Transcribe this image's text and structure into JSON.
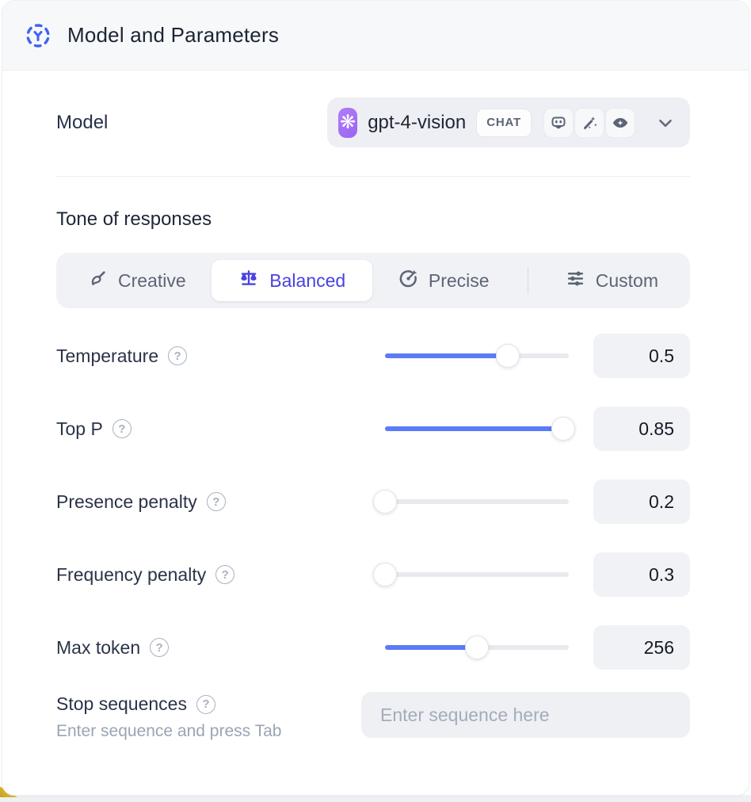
{
  "header": {
    "title": "Model and Parameters"
  },
  "model": {
    "label": "Model",
    "selected_model": "gpt-4-vision",
    "type_badge": "CHAT",
    "provider_glyph": "❋",
    "capability_icons": [
      "robot-icon",
      "magic-wand-icon",
      "vision-eye-icon"
    ]
  },
  "tone": {
    "heading": "Tone of responses",
    "tabs": [
      {
        "label": "Creative",
        "icon": "paintbrush-icon",
        "selected": false
      },
      {
        "label": "Balanced",
        "icon": "balance-scale-icon",
        "selected": true
      },
      {
        "label": "Precise",
        "icon": "target-icon",
        "selected": false
      },
      {
        "label": "Custom",
        "icon": "sliders-icon",
        "selected": false
      }
    ]
  },
  "parameters": [
    {
      "label": "Temperature",
      "value": "0.5",
      "fill_percent": 67
    },
    {
      "label": "Top P",
      "value": "0.85",
      "fill_percent": 97
    },
    {
      "label": "Presence penalty",
      "value": "0.2",
      "fill_percent": 0
    },
    {
      "label": "Frequency penalty",
      "value": "0.3",
      "fill_percent": 0
    },
    {
      "label": "Max token",
      "value": "256",
      "fill_percent": 50
    }
  ],
  "stop_sequences": {
    "label": "Stop sequences",
    "helper": "Enter sequence and press Tab",
    "placeholder": "Enter sequence here"
  },
  "colors": {
    "accent_blue": "#5b7bf7",
    "selected_indigo": "#4a42df",
    "openai_purple": "#9a63f2",
    "header_bg": "#f7f8fa",
    "corner_accent_yellow": "#dcb928"
  }
}
